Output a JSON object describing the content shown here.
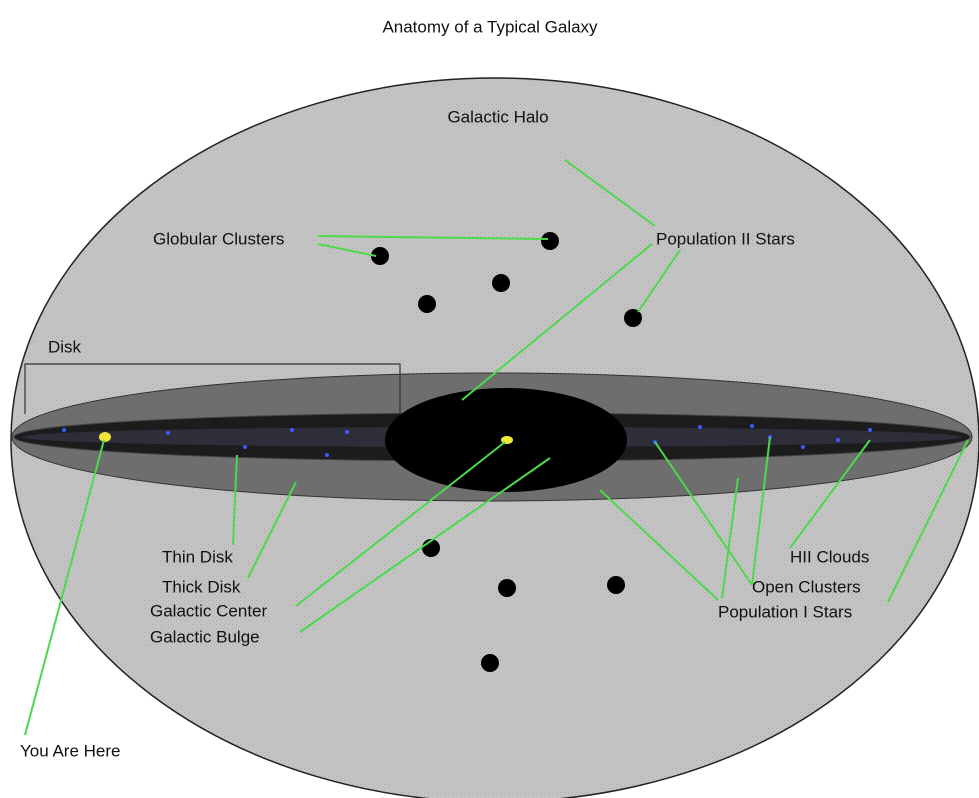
{
  "title": "Anatomy of a Typical Galaxy",
  "labels": {
    "halo": "Galactic Halo",
    "globular": "Globular Clusters",
    "pop2": "Population II Stars",
    "disk": "Disk",
    "thin": "Thin Disk",
    "thick": "Thick Disk",
    "center": "Galactic Center",
    "bulge": "Galactic Bulge",
    "hii": "HII Clouds",
    "open": "Open Clusters",
    "pop1": "Population I Stars",
    "here": "You Are Here"
  }
}
